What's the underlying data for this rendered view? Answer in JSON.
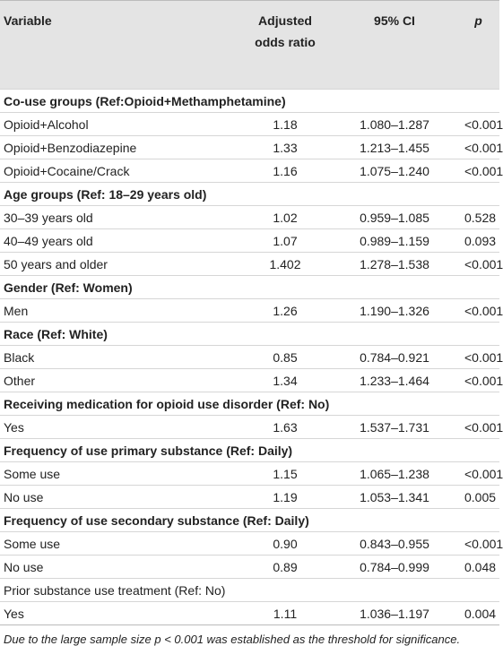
{
  "table": {
    "header": [
      "Variable",
      "Adjusted odds ratio",
      "95% CI",
      "p"
    ],
    "groups": [
      {
        "heading": "Co-use groups (Ref:Opioid+Methamphetamine)",
        "bold": true,
        "rows": [
          [
            "Opioid+Alcohol",
            "1.18",
            "1.080–1.287",
            "<0.001"
          ],
          [
            "Opioid+Benzodiazepine",
            "1.33",
            "1.213–1.455",
            "<0.001"
          ],
          [
            "Opioid+Cocaine/Crack",
            "1.16",
            "1.075–1.240",
            "<0.001"
          ]
        ]
      },
      {
        "heading": "Age groups (Ref: 18–29 years old)",
        "bold": true,
        "rows": [
          [
            "30–39 years old",
            "1.02",
            "0.959–1.085",
            "0.528"
          ],
          [
            "40–49 years old",
            "1.07",
            "0.989–1.159",
            "0.093"
          ],
          [
            "50 years and older",
            "1.402",
            "1.278–1.538",
            "<0.001"
          ]
        ]
      },
      {
        "heading": "Gender (Ref: Women)",
        "bold": true,
        "rows": [
          [
            "Men",
            "1.26",
            "1.190–1.326",
            "<0.001"
          ]
        ]
      },
      {
        "heading": "Race (Ref: White)",
        "bold": true,
        "rows": [
          [
            "Black",
            "0.85",
            "0.784–0.921",
            "<0.001"
          ],
          [
            "Other",
            "1.34",
            "1.233–1.464",
            "<0.001"
          ]
        ]
      },
      {
        "heading": "Receiving medication for opioid use disorder (Ref: No)",
        "bold": true,
        "rows": [
          [
            "Yes",
            "1.63",
            "1.537–1.731",
            "<0.001"
          ]
        ]
      },
      {
        "heading": "Frequency of use primary substance (Ref: Daily)",
        "bold": true,
        "rows": [
          [
            "Some use",
            "1.15",
            "1.065–1.238",
            "<0.001"
          ],
          [
            "No use",
            "1.19",
            "1.053–1.341",
            "0.005"
          ]
        ]
      },
      {
        "heading": "Frequency of use secondary substance (Ref: Daily)",
        "bold": true,
        "rows": [
          [
            "Some use",
            "0.90",
            "0.843–0.955",
            "<0.001"
          ],
          [
            "No use",
            "0.89",
            "0.784–0.999",
            "0.048"
          ]
        ]
      },
      {
        "heading": "Prior substance use treatment (Ref: No)",
        "bold": false,
        "rows": [
          [
            "Yes",
            "1.11",
            "1.036–1.197",
            "0.004"
          ]
        ]
      }
    ],
    "footnote": "Due to the large sample size p < 0.001 was established as the threshold for significance."
  }
}
